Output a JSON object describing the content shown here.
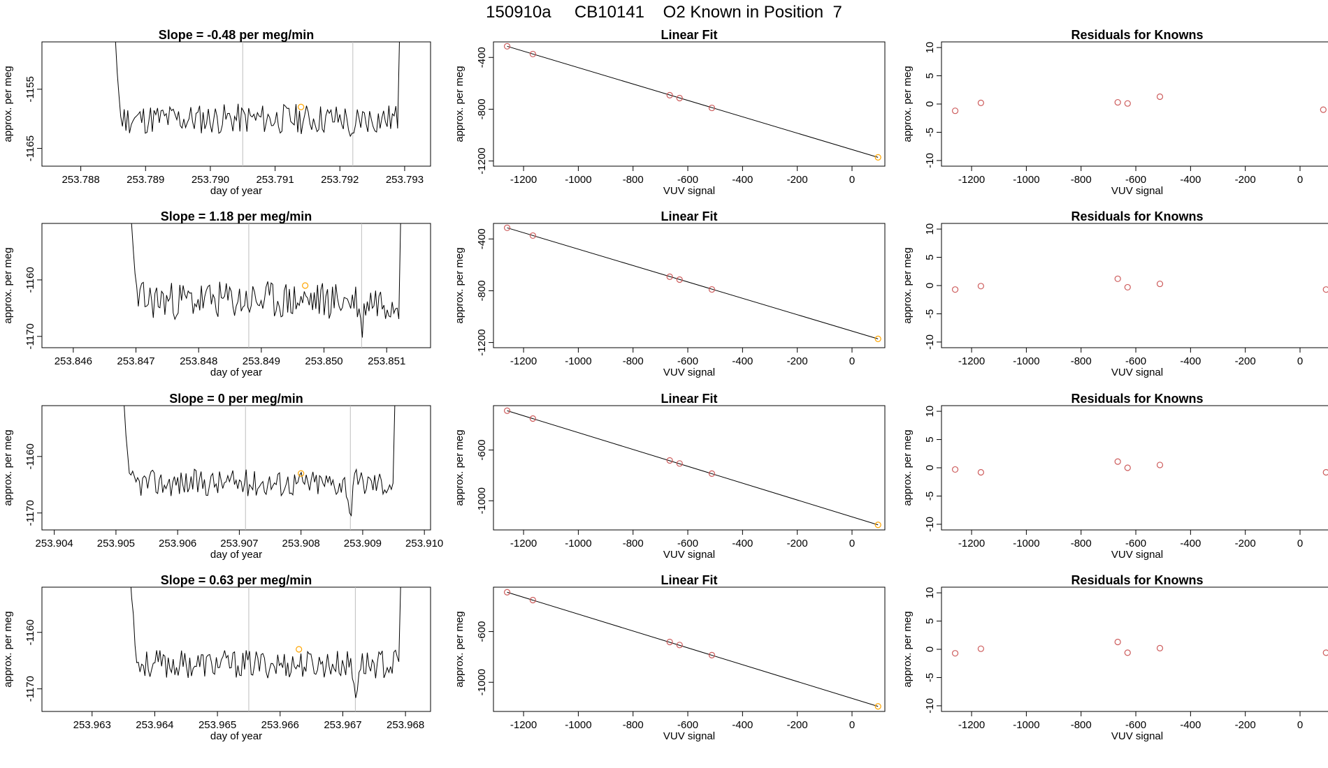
{
  "page": {
    "title": "150910a     CB10141    O2 Known in Position  7"
  },
  "colors": {
    "trace": "#000000",
    "frame": "#000000",
    "vline": "#bebebe",
    "point_orange": "#ffa500",
    "point_red": "#cd5c5c",
    "fit_line": "#000000"
  },
  "chart_data": [
    {
      "id": "r1-trace",
      "type": "line",
      "title": "Slope =  -0.48  per meg/min",
      "xlabel": "day of year",
      "ylabel": "approx. per meg",
      "xlim": [
        253.7874,
        253.7934
      ],
      "ylim": [
        -1168,
        -1147
      ],
      "xticks": [
        253.788,
        253.789,
        253.79,
        253.791,
        253.792,
        253.793
      ],
      "xtick_labels": [
        "253.788",
        "253.789",
        "253.790",
        "253.791",
        "253.792",
        "253.793"
      ],
      "yticks": [
        -1165,
        -1155
      ],
      "ytick_labels": [
        "-1165",
        "-1155"
      ],
      "vlines": [
        253.7905,
        253.7922
      ],
      "t_start": 253.7884,
      "t_end": 253.793,
      "noise": 2.6,
      "seed": 11,
      "points": [
        {
          "x": 253.7914,
          "y": -1158.0,
          "color": "orange"
        }
      ]
    },
    {
      "id": "r2-trace",
      "type": "line",
      "title": "Slope =  1.18  per meg/min",
      "xlabel": "day of year",
      "ylabel": "approx. per meg",
      "xlim": [
        253.8455,
        253.8517
      ],
      "ylim": [
        -1172,
        -1150
      ],
      "xticks": [
        253.846,
        253.847,
        253.848,
        253.849,
        253.85,
        253.851
      ],
      "xtick_labels": [
        "253.846",
        "253.847",
        "253.848",
        "253.849",
        "253.850",
        "253.851"
      ],
      "yticks": [
        -1170,
        -1160
      ],
      "ytick_labels": [
        "-1170",
        "-1160"
      ],
      "vlines": [
        253.8488,
        253.8506
      ],
      "t_start": 253.8468,
      "t_end": 253.8513,
      "noise": 3.4,
      "seed": 23,
      "points": [
        {
          "x": 253.8497,
          "y": -1161.0,
          "color": "orange"
        }
      ]
    },
    {
      "id": "r3-trace",
      "type": "line",
      "title": "Slope =  0  per meg/min",
      "xlabel": "day of year",
      "ylabel": "approx. per meg",
      "xlim": [
        253.9038,
        253.9101
      ],
      "ylim": [
        -1173,
        -1151
      ],
      "xticks": [
        253.904,
        253.905,
        253.906,
        253.907,
        253.908,
        253.909,
        253.91
      ],
      "xtick_labels": [
        "253.904",
        "253.905",
        "253.906",
        "253.907",
        "253.908",
        "253.909",
        "253.910"
      ],
      "yticks": [
        -1170,
        -1160
      ],
      "ytick_labels": [
        "-1170",
        "-1160"
      ],
      "vlines": [
        253.9071,
        253.9088
      ],
      "t_start": 253.905,
      "t_end": 253.9096,
      "noise": 2.4,
      "seed": 37,
      "points": [
        {
          "x": 253.908,
          "y": -1163.0,
          "color": "orange"
        }
      ]
    },
    {
      "id": "r4-trace",
      "type": "line",
      "title": "Slope =  0.63  per meg/min",
      "xlabel": "day of year",
      "ylabel": "approx. per meg",
      "xlim": [
        253.9622,
        253.9684
      ],
      "ylim": [
        -1174,
        -1152
      ],
      "xticks": [
        253.963,
        253.964,
        253.965,
        253.966,
        253.967,
        253.968
      ],
      "xtick_labels": [
        "253.963",
        "253.964",
        "253.965",
        "253.966",
        "253.967",
        "253.968"
      ],
      "yticks": [
        -1170,
        -1160
      ],
      "ytick_labels": [
        "-1170",
        "-1160"
      ],
      "vlines": [
        253.9655,
        253.9672
      ],
      "t_start": 253.9635,
      "t_end": 253.968,
      "noise": 2.5,
      "seed": 53,
      "points": [
        {
          "x": 253.9663,
          "y": -1163.0,
          "color": "orange"
        }
      ]
    },
    {
      "id": "r1-fit",
      "type": "scatter",
      "title": "Linear Fit",
      "xlabel": "VUV signal",
      "ylabel": "approx. per meg",
      "xlim": [
        -1310,
        120
      ],
      "ylim": [
        -1240,
        -280
      ],
      "xticks": [
        -1200,
        -1000,
        -800,
        -600,
        -400,
        -200,
        0
      ],
      "xtick_labels": [
        "-1200",
        "-1000",
        "-800",
        "-600",
        "-400",
        "-200",
        "0"
      ],
      "yticks": [
        -1200,
        -800,
        -400
      ],
      "ytick_labels": [
        "-1200",
        "-800",
        "-400"
      ],
      "fit_line": [
        [
          -1260,
          -314
        ],
        [
          95,
          -1172
        ]
      ],
      "points": [
        {
          "x": -1260,
          "y": -314,
          "color": "red"
        },
        {
          "x": -1166,
          "y": -374,
          "color": "red"
        },
        {
          "x": -666,
          "y": -692,
          "color": "red"
        },
        {
          "x": -630,
          "y": -714,
          "color": "red"
        },
        {
          "x": -512,
          "y": -790,
          "color": "red"
        },
        {
          "x": 95,
          "y": -1172,
          "color": "orange"
        }
      ]
    },
    {
      "id": "r2-fit",
      "type": "scatter",
      "title": "Linear Fit",
      "xlabel": "VUV signal",
      "ylabel": "approx. per meg",
      "xlim": [
        -1310,
        120
      ],
      "ylim": [
        -1240,
        -280
      ],
      "xticks": [
        -1200,
        -1000,
        -800,
        -600,
        -400,
        -200,
        0
      ],
      "xtick_labels": [
        "-1200",
        "-1000",
        "-800",
        "-600",
        "-400",
        "-200",
        "0"
      ],
      "yticks": [
        -1200,
        -800,
        -400
      ],
      "ytick_labels": [
        "-1200",
        "-800",
        "-400"
      ],
      "fit_line": [
        [
          -1260,
          -314
        ],
        [
          95,
          -1172
        ]
      ],
      "points": [
        {
          "x": -1260,
          "y": -314,
          "color": "red"
        },
        {
          "x": -1166,
          "y": -374,
          "color": "red"
        },
        {
          "x": -666,
          "y": -692,
          "color": "red"
        },
        {
          "x": -630,
          "y": -714,
          "color": "red"
        },
        {
          "x": -512,
          "y": -790,
          "color": "red"
        },
        {
          "x": 95,
          "y": -1172,
          "color": "orange"
        }
      ]
    },
    {
      "id": "r3-fit",
      "type": "scatter",
      "title": "Linear Fit",
      "xlabel": "VUV signal",
      "ylabel": "approx. per meg",
      "xlim": [
        -1310,
        120
      ],
      "ylim": [
        -1230,
        -250
      ],
      "xticks": [
        -1200,
        -1000,
        -800,
        -600,
        -400,
        -200,
        0
      ],
      "xtick_labels": [
        "-1200",
        "-1000",
        "-800",
        "-600",
        "-400",
        "-200",
        "0"
      ],
      "yticks": [
        -1000,
        -600
      ],
      "ytick_labels": [
        "-1000",
        "-600"
      ],
      "fit_line": [
        [
          -1260,
          -290
        ],
        [
          95,
          -1190
        ]
      ],
      "points": [
        {
          "x": -1260,
          "y": -290,
          "color": "red"
        },
        {
          "x": -1166,
          "y": -352,
          "color": "red"
        },
        {
          "x": -666,
          "y": -682,
          "color": "red"
        },
        {
          "x": -630,
          "y": -706,
          "color": "red"
        },
        {
          "x": -512,
          "y": -786,
          "color": "red"
        },
        {
          "x": 95,
          "y": -1190,
          "color": "orange"
        }
      ]
    },
    {
      "id": "r4-fit",
      "type": "scatter",
      "title": "Linear Fit",
      "xlabel": "VUV signal",
      "ylabel": "approx. per meg",
      "xlim": [
        -1310,
        120
      ],
      "ylim": [
        -1230,
        -250
      ],
      "xticks": [
        -1200,
        -1000,
        -800,
        -600,
        -400,
        -200,
        0
      ],
      "xtick_labels": [
        "-1200",
        "-1000",
        "-800",
        "-600",
        "-400",
        "-200",
        "0"
      ],
      "yticks": [
        -1000,
        -600
      ],
      "ytick_labels": [
        "-1000",
        "-600"
      ],
      "fit_line": [
        [
          -1260,
          -290
        ],
        [
          95,
          -1190
        ]
      ],
      "points": [
        {
          "x": -1260,
          "y": -290,
          "color": "red"
        },
        {
          "x": -1166,
          "y": -352,
          "color": "red"
        },
        {
          "x": -666,
          "y": -682,
          "color": "red"
        },
        {
          "x": -630,
          "y": -706,
          "color": "red"
        },
        {
          "x": -512,
          "y": -786,
          "color": "red"
        },
        {
          "x": 95,
          "y": -1190,
          "color": "orange"
        }
      ]
    },
    {
      "id": "r1-resid",
      "type": "scatter",
      "title": "Residuals for Knowns",
      "xlabel": "VUV signal",
      "ylabel": "approx. per meg",
      "xlim": [
        -1310,
        120
      ],
      "ylim": [
        -11,
        11
      ],
      "xticks": [
        -1200,
        -1000,
        -800,
        -600,
        -400,
        -200,
        0
      ],
      "xtick_labels": [
        "-1200",
        "-1000",
        "-800",
        "-600",
        "-400",
        "-200",
        "0"
      ],
      "yticks": [
        -10,
        -5,
        0,
        5,
        10
      ],
      "ytick_labels": [
        "-10",
        "-5",
        "0",
        "5",
        "10"
      ],
      "points": [
        {
          "x": -1260,
          "y": -1.2,
          "color": "red"
        },
        {
          "x": -1166,
          "y": 0.2,
          "color": "red"
        },
        {
          "x": -666,
          "y": 0.3,
          "color": "red"
        },
        {
          "x": -630,
          "y": 0.1,
          "color": "red"
        },
        {
          "x": -512,
          "y": 1.3,
          "color": "red"
        },
        {
          "x": 85,
          "y": -1.0,
          "color": "red"
        }
      ]
    },
    {
      "id": "r2-resid",
      "type": "scatter",
      "title": "Residuals for Knowns",
      "xlabel": "VUV signal",
      "ylabel": "approx. per meg",
      "xlim": [
        -1310,
        120
      ],
      "ylim": [
        -11,
        11
      ],
      "xticks": [
        -1200,
        -1000,
        -800,
        -600,
        -400,
        -200,
        0
      ],
      "xtick_labels": [
        "-1200",
        "-1000",
        "-800",
        "-600",
        "-400",
        "-200",
        "0"
      ],
      "yticks": [
        -10,
        -5,
        0,
        5,
        10
      ],
      "ytick_labels": [
        "-10",
        "-5",
        "0",
        "5",
        "10"
      ],
      "points": [
        {
          "x": -1260,
          "y": -0.7,
          "color": "red"
        },
        {
          "x": -1166,
          "y": -0.1,
          "color": "red"
        },
        {
          "x": -666,
          "y": 1.2,
          "color": "red"
        },
        {
          "x": -630,
          "y": -0.3,
          "color": "red"
        },
        {
          "x": -512,
          "y": 0.3,
          "color": "red"
        },
        {
          "x": 95,
          "y": -0.7,
          "color": "red"
        }
      ]
    },
    {
      "id": "r3-resid",
      "type": "scatter",
      "title": "Residuals for Knowns",
      "xlabel": "VUV signal",
      "ylabel": "approx. per meg",
      "xlim": [
        -1310,
        120
      ],
      "ylim": [
        -11,
        11
      ],
      "xticks": [
        -1200,
        -1000,
        -800,
        -600,
        -400,
        -200,
        0
      ],
      "xtick_labels": [
        "-1200",
        "-1000",
        "-800",
        "-600",
        "-400",
        "-200",
        "0"
      ],
      "yticks": [
        -10,
        -5,
        0,
        5,
        10
      ],
      "ytick_labels": [
        "-10",
        "-5",
        "0",
        "5",
        "10"
      ],
      "points": [
        {
          "x": -1260,
          "y": -0.3,
          "color": "red"
        },
        {
          "x": -1166,
          "y": -0.8,
          "color": "red"
        },
        {
          "x": -666,
          "y": 1.1,
          "color": "red"
        },
        {
          "x": -630,
          "y": 0.0,
          "color": "red"
        },
        {
          "x": -512,
          "y": 0.5,
          "color": "red"
        },
        {
          "x": 95,
          "y": -0.8,
          "color": "red"
        }
      ]
    },
    {
      "id": "r4-resid",
      "type": "scatter",
      "title": "Residuals for Knowns",
      "xlabel": "VUV signal",
      "ylabel": "approx. per meg",
      "xlim": [
        -1310,
        120
      ],
      "ylim": [
        -11,
        11
      ],
      "xticks": [
        -1200,
        -1000,
        -800,
        -600,
        -400,
        -200,
        0
      ],
      "xtick_labels": [
        "-1200",
        "-1000",
        "-800",
        "-600",
        "-400",
        "-200",
        "0"
      ],
      "yticks": [
        -10,
        -5,
        0,
        5,
        10
      ],
      "ytick_labels": [
        "-10",
        "-5",
        "0",
        "5",
        "10"
      ],
      "points": [
        {
          "x": -1260,
          "y": -0.7,
          "color": "red"
        },
        {
          "x": -1166,
          "y": 0.1,
          "color": "red"
        },
        {
          "x": -666,
          "y": 1.3,
          "color": "red"
        },
        {
          "x": -630,
          "y": -0.6,
          "color": "red"
        },
        {
          "x": -512,
          "y": 0.2,
          "color": "red"
        },
        {
          "x": 95,
          "y": -0.6,
          "color": "red"
        }
      ]
    }
  ]
}
